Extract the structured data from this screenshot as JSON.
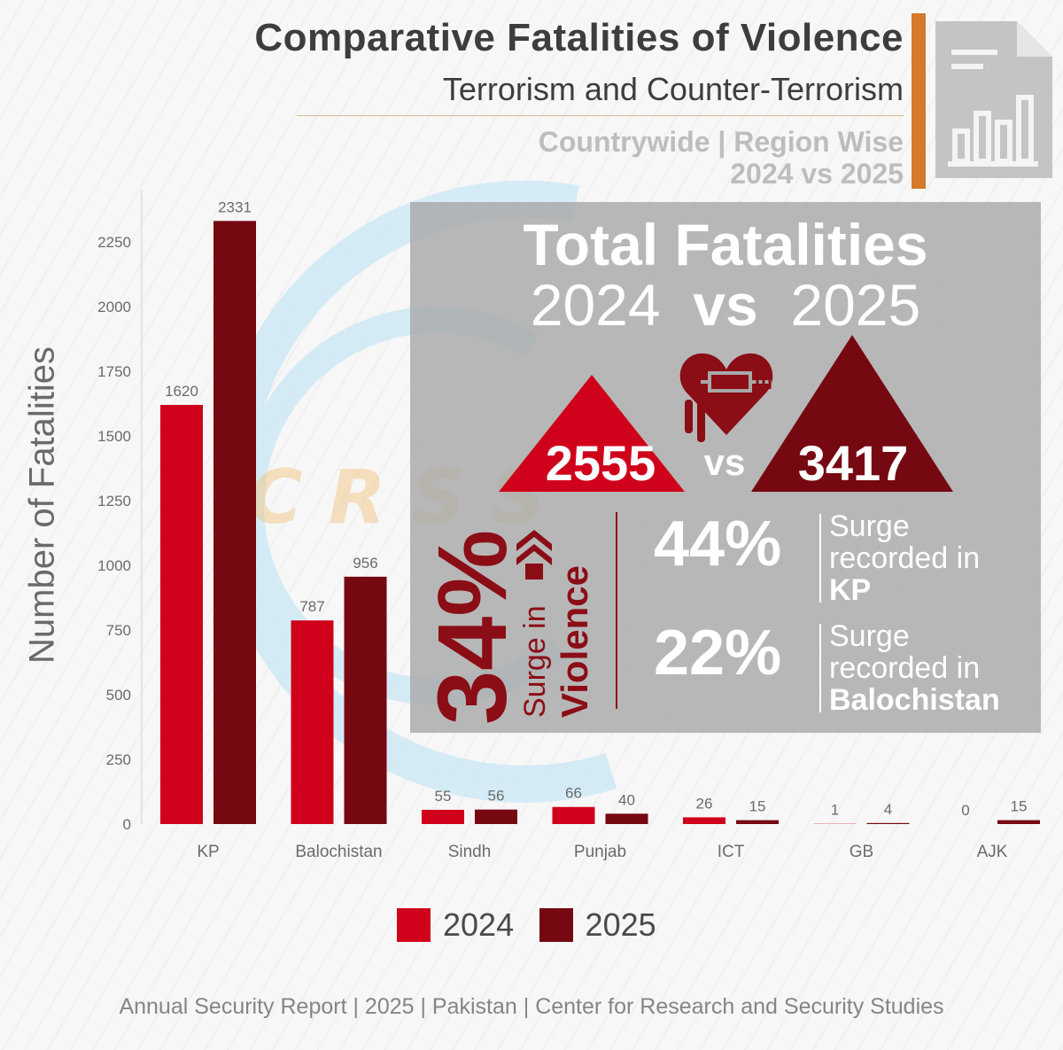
{
  "header": {
    "title": "Comparative Fatalities of Violence",
    "subtitle": "Terrorism and Counter-Terrorism",
    "scope": "Countrywide | Region Wise",
    "period": "2024 vs 2025"
  },
  "colors": {
    "y2024": "#d0021b",
    "y2025": "#760812",
    "accent": "#d47a2a",
    "panel": "#a8a8a8",
    "dark_red": "#8b0d16"
  },
  "icons": [
    "report-chart-icon",
    "heart-syringe-icon",
    "double-up-arrow-icon",
    "up-triangle-icon"
  ],
  "panel": {
    "title": "Total Fatalities",
    "year_a": "2024",
    "vs": "vs",
    "year_b": "2025",
    "value_2024": "2555",
    "value_2025": "3417",
    "overall_pct": "34%",
    "overall_label_1": "Surge in",
    "overall_label_2": "Violence",
    "kp_pct": "44%",
    "kp_text": "Surge",
    "kp_text2": "recorded in",
    "kp_region": "KP",
    "bal_pct": "22%",
    "bal_text": "Surge",
    "bal_text2": "recorded in",
    "bal_region": "Balochistan"
  },
  "chart_data": {
    "type": "bar",
    "title": "Comparative Fatalities of Violence",
    "xlabel": "",
    "ylabel": "Number of Fatalities",
    "ylim": [
      0,
      2400
    ],
    "yticks": [
      0,
      250,
      500,
      750,
      1000,
      1250,
      1500,
      1750,
      2000,
      2250
    ],
    "grid": false,
    "legend": "bottom-center",
    "categories": [
      "KP",
      "Balochistan",
      "Sindh",
      "Punjab",
      "ICT",
      "GB",
      "AJK"
    ],
    "series": [
      {
        "name": "2024",
        "values": [
          1620,
          787,
          55,
          66,
          26,
          1,
          0
        ]
      },
      {
        "name": "2025",
        "values": [
          2331,
          956,
          56,
          40,
          15,
          4,
          15
        ]
      }
    ]
  },
  "watermark": "C R S S",
  "footer": "Annual Security Report | 2025 | Pakistan | Center for Research and Security Studies"
}
